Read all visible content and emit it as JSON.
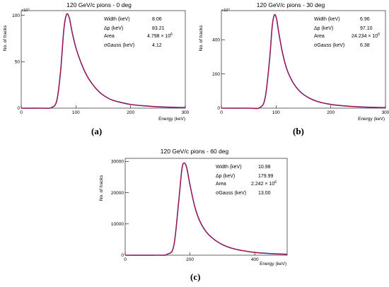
{
  "panels": [
    {
      "title": "120 GeV/c pions - 0 deg",
      "caption": "(a)",
      "ylabel": "No. of tracks",
      "xlabel": "Energy (keV)",
      "y_exponent": "×10",
      "y_exponent_power": "3",
      "stats": [
        {
          "label": "Width (keV)",
          "value": "8.06"
        },
        {
          "label": "Δp (keV)",
          "value": "83.21"
        },
        {
          "label": "Area",
          "value": "4.798 × 10",
          "value_power": "6"
        },
        {
          "label": "σGauss (keV)",
          "value": "4.12"
        }
      ]
    },
    {
      "title": "120 GeV/c pions - 30 deg",
      "caption": "(b)",
      "ylabel": "No. of tracks",
      "xlabel": "Energy (keV)",
      "y_exponent": "×10",
      "y_exponent_power": "3",
      "stats": [
        {
          "label": "Width (keV)",
          "value": "6.96"
        },
        {
          "label": "Δp (keV)",
          "value": "97.10"
        },
        {
          "label": "Area",
          "value": "24.234 × 10",
          "value_power": "6"
        },
        {
          "label": "σGauss (keV)",
          "value": "6.38"
        }
      ]
    },
    {
      "title": "120 GeV/c pions - 60 deg",
      "caption": "(c)",
      "ylabel": "No. of tracks",
      "xlabel": "Energy (keV)",
      "y_exponent": "",
      "y_exponent_power": "",
      "stats": [
        {
          "label": "Width (keV)",
          "value": "10.98"
        },
        {
          "label": "Δp (keV)",
          "value": "179.99"
        },
        {
          "label": "Area",
          "value": "2.242 × 10",
          "value_power": "6"
        },
        {
          "label": "σGauss (keV)",
          "value": "13.00"
        }
      ]
    }
  ],
  "colors": {
    "data": "#1f3fbf",
    "fit": "#e0001a"
  },
  "chart_data": [
    {
      "type": "line",
      "title": "120 GeV/c pions - 0 deg",
      "xlabel": "Energy (keV)",
      "ylabel": "No. of tracks",
      "xlim": [
        0,
        300
      ],
      "ylim": [
        0,
        105
      ],
      "x_ticks": [
        0,
        100,
        200,
        300
      ],
      "y_ticks": [
        0,
        50,
        100
      ],
      "series": [
        {
          "x": [
            0,
            40,
            55,
            65,
            72,
            78,
            83,
            88,
            93,
            100,
            110,
            120,
            130,
            140,
            150,
            165,
            180,
            200,
            225,
            250,
            275,
            300
          ],
          "y": [
            0,
            0,
            0.5,
            8,
            40,
            85,
            101,
            97,
            82,
            65,
            48,
            35,
            26,
            19,
            14,
            9,
            6.5,
            4,
            2.5,
            1.5,
            1,
            0.6
          ]
        }
      ]
    },
    {
      "type": "line",
      "title": "120 GeV/c pions - 30 deg",
      "xlabel": "Energy (keV)",
      "ylabel": "No. of tracks",
      "xlim": [
        0,
        300
      ],
      "ylim": [
        0,
        570
      ],
      "x_ticks": [
        0,
        100,
        200,
        300
      ],
      "y_ticks": [
        0,
        200,
        400
      ],
      "series": [
        {
          "x": [
            0,
            50,
            70,
            80,
            88,
            93,
            97,
            101,
            105,
            112,
            120,
            130,
            140,
            150,
            165,
            180,
            200,
            225,
            250,
            275,
            300
          ],
          "y": [
            0,
            0,
            3,
            60,
            280,
            480,
            545,
            520,
            440,
            320,
            225,
            155,
            110,
            80,
            52,
            35,
            22,
            13,
            8,
            5,
            3
          ]
        }
      ]
    },
    {
      "type": "line",
      "title": "120 GeV/c pions - 60 deg",
      "xlabel": "Energy (keV)",
      "ylabel": "No. of tracks",
      "xlim": [
        0,
        500
      ],
      "ylim": [
        0,
        31000
      ],
      "x_ticks": [
        0,
        200,
        400
      ],
      "y_ticks": [
        0,
        10000,
        20000,
        30000
      ],
      "series": [
        {
          "x": [
            0,
            100,
            130,
            150,
            165,
            175,
            182,
            190,
            200,
            215,
            230,
            250,
            275,
            300,
            330,
            360,
            400,
            450,
            500
          ],
          "y": [
            0,
            0,
            300,
            3000,
            17000,
            27500,
            29500,
            28000,
            22500,
            15500,
            11000,
            7500,
            5000,
            3400,
            2200,
            1500,
            900,
            500,
            300
          ]
        }
      ]
    }
  ]
}
